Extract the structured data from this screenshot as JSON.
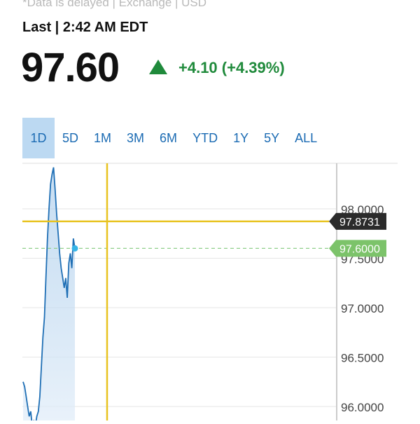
{
  "header": {
    "notice": "*Data is delayed | Exchange | USD",
    "last_label": "Last | 2:42 AM EDT",
    "price": "97.60",
    "change": "+4.10 (+4.39%)"
  },
  "tabs": [
    {
      "label": "1D",
      "active": true
    },
    {
      "label": "5D",
      "active": false
    },
    {
      "label": "1M",
      "active": false
    },
    {
      "label": "3M",
      "active": false
    },
    {
      "label": "6M",
      "active": false
    },
    {
      "label": "YTD",
      "active": false
    },
    {
      "label": "1Y",
      "active": false
    },
    {
      "label": "5Y",
      "active": false
    },
    {
      "label": "ALL",
      "active": false
    }
  ],
  "colors": {
    "up_green": "#1f8a3b",
    "tab_active_bg": "#bcd9f2",
    "tab_text": "#1b6bb3",
    "crosshair": "#e8c320",
    "line": "#1f6fb5",
    "marker": "#36b4e6",
    "badge_dark": "#2b2b2b",
    "badge_green": "#7cc36a"
  },
  "icons": {
    "change": "triangle-up-icon"
  },
  "chart_data": {
    "type": "area",
    "y_ticks": [
      "98.0000",
      "97.5000",
      "97.0000",
      "96.5000",
      "96.0000"
    ],
    "y_tick_values": [
      98.0,
      97.5,
      97.0,
      96.5,
      96.0
    ],
    "ylim": [
      95.8,
      98.55
    ],
    "crosshair_price": "97.8731",
    "crosshair_value": 97.8731,
    "last_price_label": "97.6000",
    "last_price_value": 97.6,
    "grid": true,
    "series": [
      {
        "values": [
          96.25,
          96.2,
          96.1,
          96.0,
          95.9,
          95.95,
          95.8,
          95.85,
          95.8,
          95.9,
          95.95,
          96.1,
          96.4,
          96.7,
          96.9,
          97.3,
          97.7,
          98.0,
          98.25,
          98.35,
          98.42,
          98.2,
          97.95,
          97.75,
          97.55,
          97.4,
          97.3,
          97.2,
          97.3,
          97.1,
          97.45,
          97.55,
          97.4,
          97.7,
          97.6
        ]
      }
    ]
  }
}
